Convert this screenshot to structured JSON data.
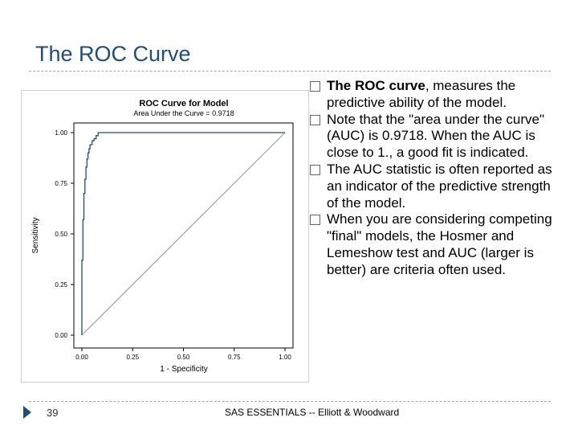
{
  "slide": {
    "title": "The ROC Curve",
    "page_number": "39",
    "footer": "SAS ESSENTIALS -- Elliott & Woodward"
  },
  "bullets": [
    {
      "bold": "The ROC curve",
      "text": ", measures the predictive ability of the model."
    },
    {
      "bold": "",
      "text": "Note that the \"area under the curve\" (AUC) is 0.9718. When the AUC is close to 1., a good fit is indicated."
    },
    {
      "bold": "",
      "text": "The AUC statistic is often reported as an indicator of the predictive strength of the model."
    },
    {
      "bold": "",
      "text": "When you are considering competing \"final\" models, the Hosmer and Lemeshow test and AUC (larger is better) are criteria often used."
    }
  ],
  "colors": {
    "title": "#1f4e79",
    "curve": "#1f4e79",
    "diagonal": "#a0a0a0"
  },
  "chart_data": {
    "type": "line",
    "title": "ROC Curve for Model",
    "subtitle": "Area Under the Curve = 0.9718",
    "xlabel": "1 - Specificity",
    "ylabel": "Sensitivity",
    "xlim": [
      0,
      1
    ],
    "ylim": [
      0,
      1
    ],
    "xticks": [
      "0.00",
      "0.25",
      "0.50",
      "0.75",
      "1.00"
    ],
    "yticks": [
      "0.00",
      "0.25",
      "0.50",
      "0.75",
      "1.00"
    ],
    "series": [
      {
        "x": [
          0,
          0,
          0.005,
          0.005,
          0.01,
          0.01,
          0.015,
          0.015,
          0.02,
          0.02,
          0.025,
          0.025,
          0.03,
          0.03,
          0.035,
          0.035,
          0.04,
          0.04,
          0.05,
          0.05,
          0.06,
          0.06,
          0.07,
          0.07,
          0.08,
          0.08,
          1.0
        ],
        "y": [
          0,
          0.37,
          0.37,
          0.57,
          0.57,
          0.7,
          0.7,
          0.77,
          0.77,
          0.83,
          0.83,
          0.87,
          0.87,
          0.9,
          0.9,
          0.92,
          0.92,
          0.94,
          0.94,
          0.96,
          0.96,
          0.97,
          0.97,
          0.985,
          0.985,
          1.0,
          1.0
        ]
      }
    ],
    "reference_line": {
      "x": [
        0,
        1
      ],
      "y": [
        0,
        1
      ]
    }
  }
}
